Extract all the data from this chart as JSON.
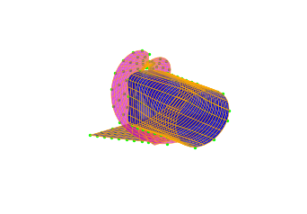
{
  "background_color": "#ffffff",
  "surface_color_blue": "#0000cc",
  "wireframe_color": "#ffaa00",
  "weld_color": "#cc00cc",
  "marker_color": "#00ff00",
  "view_elev": 20,
  "view_azim": -40,
  "figsize": [
    3.42,
    2.38
  ],
  "dpi": 100,
  "n_u": 40,
  "n_v": 40,
  "pipe_r": 1.0,
  "pipe_R": 2.5,
  "pipe_L": 5.0,
  "flat_plate_n": 30
}
